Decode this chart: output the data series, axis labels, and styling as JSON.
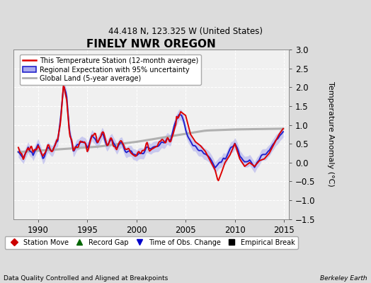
{
  "title": "FINELY NWR OREGON",
  "subtitle": "44.418 N, 123.325 W (United States)",
  "ylabel": "Temperature Anomaly (°C)",
  "footer_left": "Data Quality Controlled and Aligned at Breakpoints",
  "footer_right": "Berkeley Earth",
  "xlim": [
    1987.5,
    2015.5
  ],
  "ylim": [
    -1.5,
    3.0
  ],
  "yticks": [
    -1.5,
    -1.0,
    -0.5,
    0.0,
    0.5,
    1.0,
    1.5,
    2.0,
    2.5,
    3.0
  ],
  "xticks": [
    1990,
    1995,
    2000,
    2005,
    2010,
    2015
  ],
  "bg_color": "#dcdcdc",
  "plot_bg_color": "#f0f0f0",
  "grid_color": "#ffffff",
  "station_color": "#dd0000",
  "regional_color": "#2222cc",
  "regional_band_color": "#aaaaee",
  "global_color": "#b0b0b0",
  "legend1_entries": [
    {
      "label": "This Temperature Station (12-month average)",
      "color": "#dd0000",
      "lw": 1.8
    },
    {
      "label": "Regional Expectation with 95% uncertainty",
      "color": "#2222cc",
      "lw": 1.8
    },
    {
      "label": "Global Land (5-year average)",
      "color": "#b0b0b0",
      "lw": 2.0
    }
  ],
  "legend2_entries": [
    {
      "label": "Station Move",
      "marker": "D",
      "color": "#cc0000"
    },
    {
      "label": "Record Gap",
      "marker": "^",
      "color": "#006600"
    },
    {
      "label": "Time of Obs. Change",
      "marker": "v",
      "color": "#0000cc"
    },
    {
      "label": "Empirical Break",
      "marker": "s",
      "color": "#000000"
    }
  ]
}
